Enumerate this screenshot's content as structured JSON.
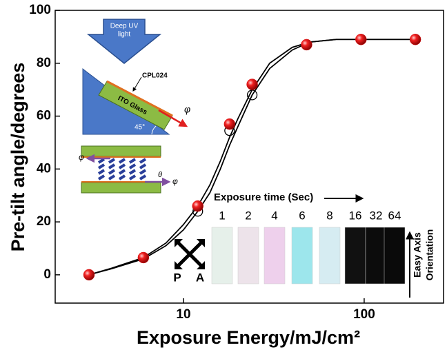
{
  "chart_data": {
    "type": "scatter",
    "xlabel": "Exposure Energy/mJ/cm²",
    "ylabel": "Pre-tilt angle/degrees",
    "xscale": "log",
    "xlim": [
      1.95,
      275
    ],
    "ylim": [
      -10.7,
      100
    ],
    "xticks": [
      10,
      100
    ],
    "yticks": [
      0,
      20,
      40,
      60,
      80,
      100
    ],
    "series": [
      {
        "kind": "sphere",
        "color": "#e01010",
        "x": [
          3,
          6,
          12,
          18,
          24,
          48,
          96,
          192
        ],
        "values": [
          0,
          6.5,
          26,
          57,
          72,
          87,
          89,
          89
        ]
      },
      {
        "kind": "open",
        "color": "#000000",
        "x": [
          12,
          18,
          24
        ],
        "values": [
          24,
          54.5,
          68
        ]
      },
      {
        "kind": "line",
        "color": "#000000",
        "x": [
          3,
          4,
          6,
          8,
          10,
          12,
          14,
          16,
          18,
          20,
          24,
          30,
          40,
          50,
          70,
          100,
          150,
          192
        ],
        "values": [
          0,
          2.5,
          6.5,
          12,
          19,
          26,
          34,
          43,
          52,
          59,
          70,
          80,
          86,
          88,
          89,
          89,
          89,
          89
        ]
      },
      {
        "kind": "line",
        "color": "#000000",
        "x": [
          3,
          4,
          6,
          8,
          10,
          12,
          14,
          16,
          18,
          20,
          24,
          30,
          40,
          50,
          70,
          100,
          150,
          192
        ],
        "values": [
          0,
          2.3,
          6,
          11,
          17,
          24,
          31,
          40,
          49,
          56,
          68,
          78,
          85,
          88,
          89,
          89,
          89,
          89
        ]
      }
    ],
    "annotations": {
      "uv_light": [
        "Deep UV",
        "light"
      ],
      "cpl": "CPL024",
      "ito": "ITO Glass",
      "phi": "φ",
      "angle": "45°",
      "theta": "θ",
      "exposure_time": "Exposure time (Sec)",
      "times": [
        1,
        2,
        4,
        6,
        8,
        16,
        32,
        64
      ],
      "polarizer": "P",
      "analyzer": "A",
      "easy_axis": [
        "Easy Axis",
        "Orientation"
      ]
    }
  }
}
